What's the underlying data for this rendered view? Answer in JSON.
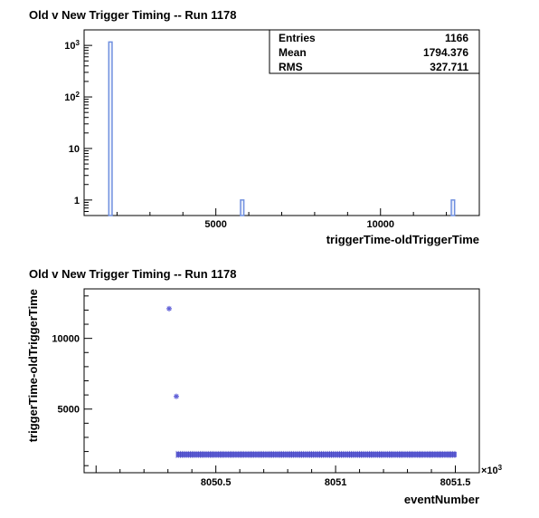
{
  "chart_data": [
    {
      "type": "bar",
      "title": "Old v New Trigger Timing -- Run 1178",
      "xlabel": "triggerTime-oldTriggerTime",
      "ylabel": "",
      "log_y": true,
      "xlim": [
        1000,
        13000
      ],
      "ylim": [
        0.5,
        2000
      ],
      "x_tick_labels": [
        {
          "value": 5000,
          "label": "5000"
        },
        {
          "value": 10000,
          "label": "10000"
        }
      ],
      "y_tick_labels": [
        {
          "value": 1,
          "label": "1"
        },
        {
          "value": 10,
          "label": "10"
        },
        {
          "value": 100,
          "label": "10^2"
        },
        {
          "value": 1000,
          "label": "10^3"
        }
      ],
      "bars": [
        {
          "x_low": 1750,
          "x_high": 1850,
          "value": 1164
        },
        {
          "x_low": 5750,
          "x_high": 5850,
          "value": 1
        },
        {
          "x_low": 12150,
          "x_high": 12250,
          "value": 1
        }
      ],
      "bar_color": "#6f8fdf",
      "stats": {
        "rows": [
          {
            "label": "Entries",
            "value": "1166"
          },
          {
            "label": "Mean",
            "value": "1794.376"
          },
          {
            "label": "RMS",
            "value": "327.711"
          }
        ]
      }
    },
    {
      "type": "scatter",
      "title": "Old v New Trigger Timing -- Run 1178",
      "xlabel": "eventNumber",
      "ylabel": "triggerTime-oldTriggerTime",
      "xlim": [
        8049.95,
        8051.6
      ],
      "ylim": [
        500,
        13500
      ],
      "x_multiplier": "×10^3",
      "x_tick_labels": [
        {
          "value": 8050.5,
          "label": "8050.5"
        },
        {
          "value": 8051,
          "label": "8051"
        },
        {
          "value": 8051.5,
          "label": "8051.5"
        }
      ],
      "y_tick_labels": [
        {
          "value": 5000,
          "label": "5000"
        },
        {
          "value": 10000,
          "label": "10000"
        }
      ],
      "points": [
        {
          "x": 8050.305,
          "y": 12100
        },
        {
          "x": 8050.335,
          "y": 5900
        }
      ],
      "band": {
        "x_start": 8050.335,
        "x_end": 8051.505,
        "y": 1790
      },
      "marker_color": "#5f5fd7"
    }
  ]
}
